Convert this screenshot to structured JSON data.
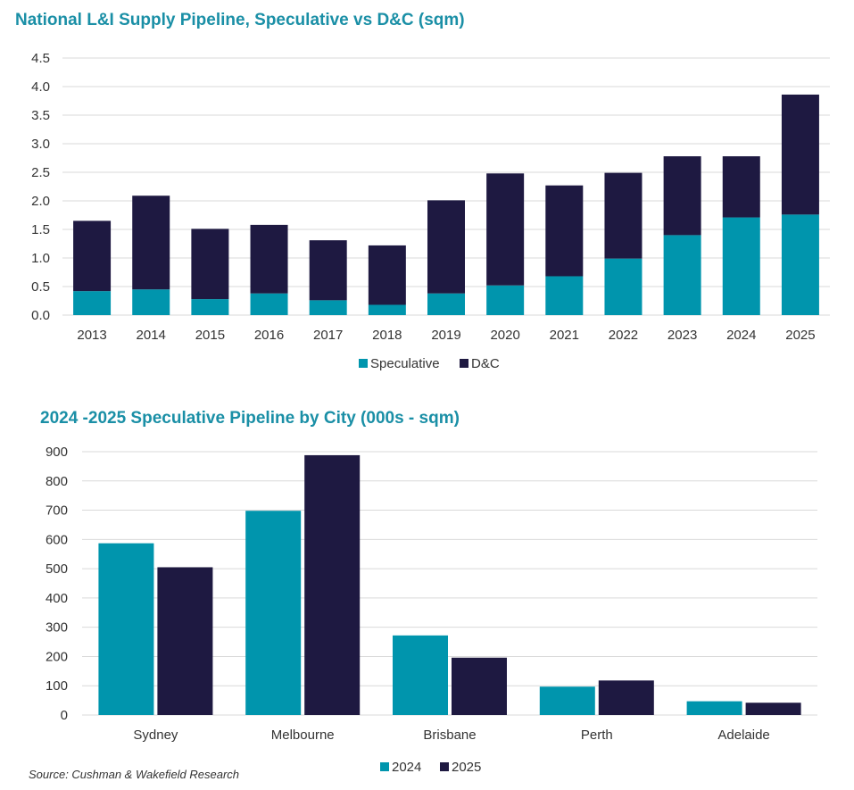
{
  "colors": {
    "title": "#1a8fa6",
    "speculative": "#0095ad",
    "dc": "#1e1941",
    "grid": "#d9d9d9"
  },
  "source": "Source: Cushman & Wakefield Research",
  "chart_data": [
    {
      "type": "bar",
      "stacked": true,
      "title": "National L&I Supply Pipeline, Speculative vs D&C (sqm)",
      "categories": [
        "2013",
        "2014",
        "2015",
        "2016",
        "2017",
        "2018",
        "2019",
        "2020",
        "2021",
        "2022",
        "2023",
        "2024",
        "2025"
      ],
      "series": [
        {
          "name": "Speculative",
          "color": "#0095ad",
          "values": [
            0.42,
            0.45,
            0.28,
            0.38,
            0.26,
            0.18,
            0.38,
            0.52,
            0.68,
            0.99,
            1.4,
            1.71,
            1.76
          ]
        },
        {
          "name": "D&C",
          "color": "#1e1941",
          "values": [
            1.23,
            1.64,
            1.23,
            1.2,
            1.05,
            1.04,
            1.63,
            1.96,
            1.59,
            1.5,
            1.38,
            1.07,
            2.1
          ]
        }
      ],
      "yticks": [
        "0.0",
        "0.5",
        "1.0",
        "1.5",
        "2.0",
        "2.5",
        "3.0",
        "3.5",
        "4.0",
        "4.5"
      ],
      "ylim": [
        0,
        4.5
      ],
      "legend_position": "bottom",
      "grid": true
    },
    {
      "type": "bar",
      "stacked": false,
      "title": "2024 -2025 Speculative Pipeline by City (000s - sqm)",
      "categories": [
        "Sydney",
        "Melbourne",
        "Brisbane",
        "Perth",
        "Adelaide"
      ],
      "series": [
        {
          "name": "2024",
          "color": "#0095ad",
          "values": [
            587,
            698,
            272,
            97,
            47
          ]
        },
        {
          "name": "2025",
          "color": "#1e1941",
          "values": [
            505,
            888,
            196,
            118,
            42
          ]
        }
      ],
      "yticks": [
        "0",
        "100",
        "200",
        "300",
        "400",
        "500",
        "600",
        "700",
        "800",
        "900"
      ],
      "ylim": [
        0,
        900
      ],
      "legend_position": "bottom",
      "grid": true
    }
  ]
}
